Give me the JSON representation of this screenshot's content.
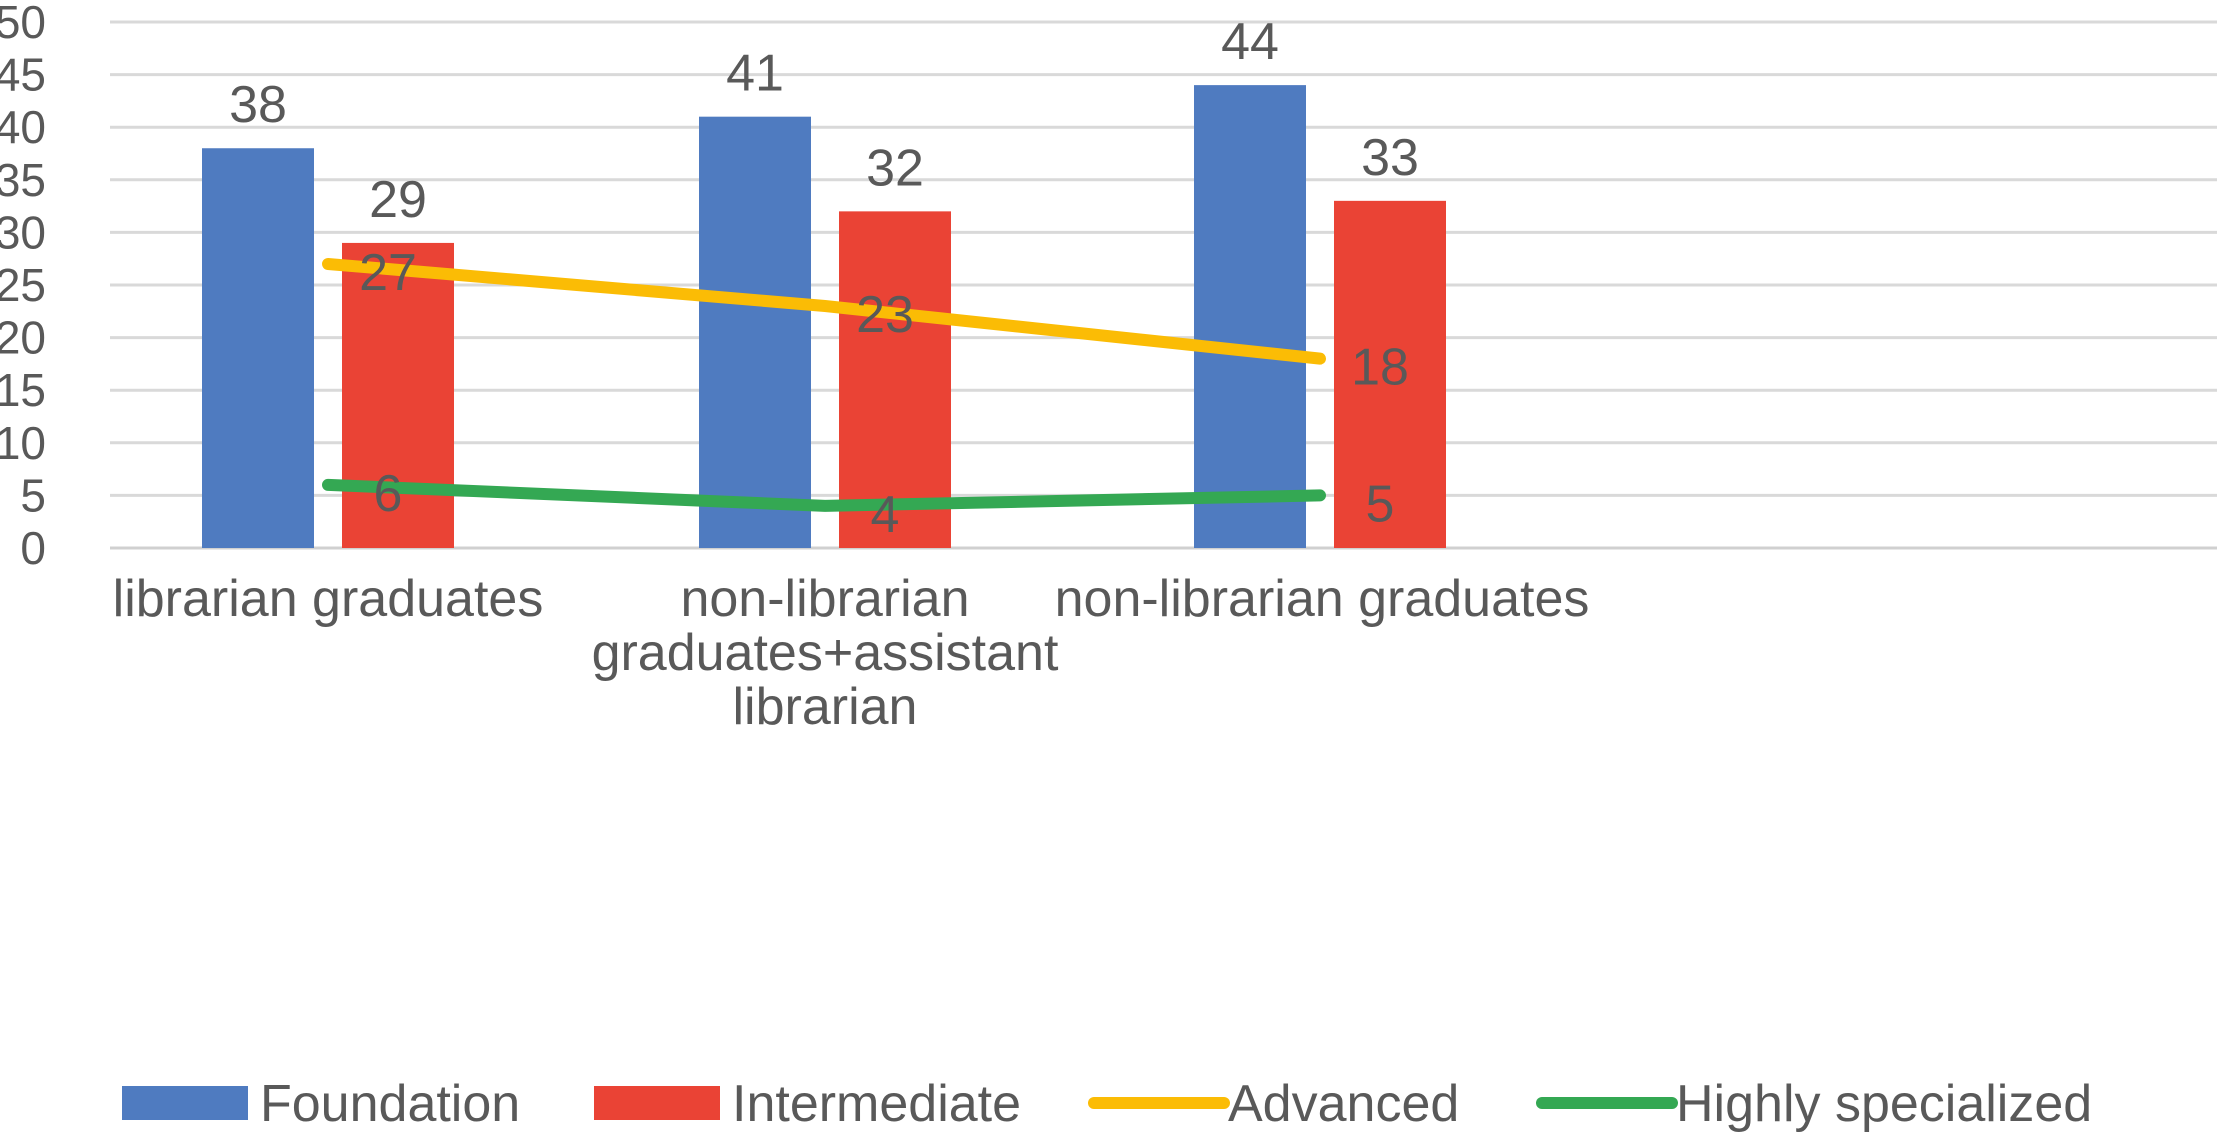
{
  "chart_data": {
    "type": "bar",
    "categories": [
      [
        "librarian graduates"
      ],
      [
        "non-librarian",
        "graduates+assistant",
        "librarian"
      ],
      [
        "non-librarian graduates"
      ]
    ],
    "ylim": [
      0,
      50
    ],
    "y_ticks": [
      0,
      5,
      10,
      15,
      20,
      25,
      30,
      35,
      40,
      45,
      50
    ],
    "grid": true,
    "legend_position": "bottom",
    "series": [
      {
        "name": "Foundation",
        "kind": "bar",
        "color": "#4F7BC0",
        "values": [
          38,
          41,
          44
        ]
      },
      {
        "name": "Intermediate",
        "kind": "bar",
        "color": "#EA4335",
        "values": [
          29,
          32,
          33
        ]
      },
      {
        "name": "Advanced",
        "kind": "line",
        "color": "#FBBC05",
        "values": [
          27,
          23,
          18
        ]
      },
      {
        "name": "Highly specialized",
        "kind": "line",
        "color": "#34A853",
        "values": [
          6,
          4,
          5
        ]
      }
    ]
  }
}
